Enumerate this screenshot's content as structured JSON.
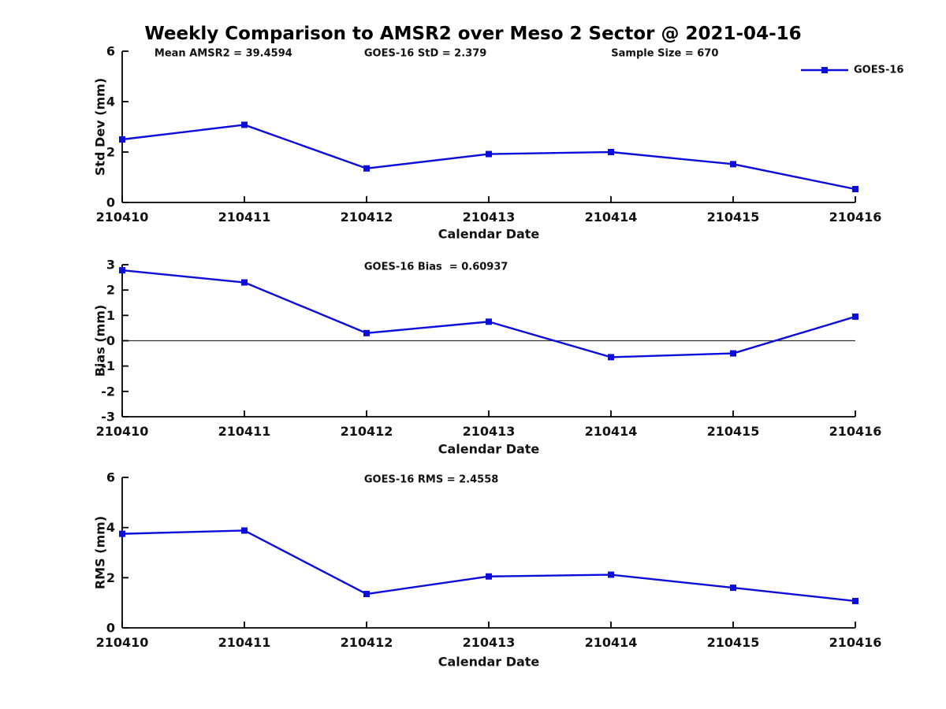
{
  "title": "Weekly Comparison to AMSR2 over Meso 2 Sector @ 2021-04-16",
  "legend": {
    "label": "GOES-16"
  },
  "colors": {
    "line": "#0c0cdc",
    "axis": "#000000",
    "zero_line": "#333333",
    "text": "#111111",
    "background": "#ffffff"
  },
  "chart_data": [
    {
      "type": "line",
      "name": "std-dev",
      "categories": [
        "210410",
        "210411",
        "210412",
        "210413",
        "210414",
        "210415",
        "210416"
      ],
      "series": [
        {
          "name": "GOES-16",
          "values": [
            2.5,
            3.08,
            1.35,
            1.92,
            2.0,
            1.52,
            0.53
          ]
        }
      ],
      "title_annotations": [
        {
          "text": "Mean AMSR2 = 39.4594",
          "xfrac": 0.044
        },
        {
          "text": "GOES-16 StD = 2.379",
          "xfrac": 0.33
        },
        {
          "text": "Sample Size = 670",
          "xfrac": 0.667
        }
      ],
      "xlabel": "Calendar Date",
      "ylabel": "Std Dev (mm)",
      "ylim": [
        0,
        6
      ],
      "yticks": [
        0,
        2,
        4,
        6
      ],
      "grid": false,
      "zero_line": false,
      "legend": true,
      "legend_position": "upper right"
    },
    {
      "type": "line",
      "name": "bias",
      "categories": [
        "210410",
        "210411",
        "210412",
        "210413",
        "210414",
        "210415",
        "210416"
      ],
      "series": [
        {
          "name": "GOES-16",
          "values": [
            2.78,
            2.3,
            0.3,
            0.75,
            -0.65,
            -0.5,
            0.95
          ]
        }
      ],
      "title_annotations": [
        {
          "text": "GOES-16 Bias  = 0.60937",
          "xfrac": 0.33
        }
      ],
      "xlabel": "Calendar Date",
      "ylabel": "Bias (mm)",
      "ylim": [
        -3,
        3
      ],
      "yticks": [
        -3,
        -2,
        -1,
        0,
        1,
        2,
        3
      ],
      "grid": false,
      "zero_line": true,
      "legend": false
    },
    {
      "type": "line",
      "name": "rms",
      "categories": [
        "210410",
        "210411",
        "210412",
        "210413",
        "210414",
        "210415",
        "210416"
      ],
      "series": [
        {
          "name": "GOES-16",
          "values": [
            3.75,
            3.88,
            1.35,
            2.05,
            2.12,
            1.6,
            1.07
          ]
        }
      ],
      "title_annotations": [
        {
          "text": "GOES-16 RMS = 2.4558",
          "xfrac": 0.33
        }
      ],
      "xlabel": "Calendar Date",
      "ylabel": "RMS (mm)",
      "ylim": [
        0,
        6
      ],
      "yticks": [
        0,
        2,
        4,
        6
      ],
      "grid": false,
      "zero_line": false,
      "legend": false
    }
  ]
}
